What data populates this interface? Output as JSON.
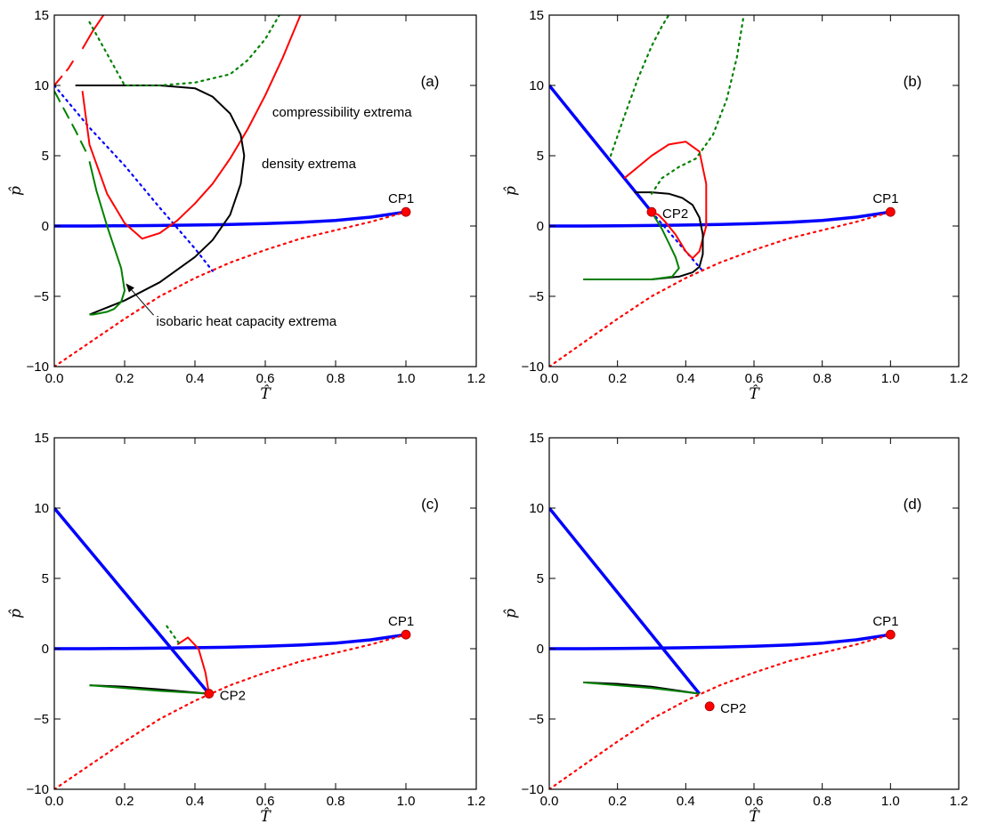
{
  "figure": {
    "xlabel": "T̂",
    "ylabel": "p̂",
    "colors": {
      "phase_boundary": "#0000ff",
      "compressibility": "#ff0000",
      "density": "#000000",
      "heat_capacity": "#008000",
      "critical_point": "#ff0000"
    }
  },
  "chart_data": [
    {
      "type": "line",
      "panel_label": "(a)",
      "xlim": [
        0,
        1.2
      ],
      "ylim": [
        -10,
        15
      ],
      "xticks": [
        0.0,
        0.2,
        0.4,
        0.6,
        0.8,
        1.0,
        1.2
      ],
      "yticks": [
        -10,
        -5,
        0,
        5,
        10,
        15
      ],
      "series": [
        {
          "name": "phase-boundary-main",
          "color": "#0000ff",
          "style": "solid",
          "x": [
            0.0,
            0.1,
            0.2,
            0.3,
            0.4,
            0.5,
            0.6,
            0.7,
            0.8,
            0.9,
            1.0
          ],
          "y": [
            0.0,
            0.0,
            0.02,
            0.04,
            0.07,
            0.11,
            0.17,
            0.26,
            0.4,
            0.63,
            1.0
          ]
        },
        {
          "name": "phase-boundary-metastable",
          "color": "#0000ff",
          "style": "dotted",
          "x": [
            0.0,
            0.1,
            0.2,
            0.3,
            0.4,
            0.45
          ],
          "y": [
            10.0,
            7.0,
            4.3,
            1.3,
            -1.6,
            -3.2
          ]
        },
        {
          "name": "compressibility-extrema-1",
          "color": "#ff0000",
          "style": "solid",
          "x": [
            0.08,
            0.1,
            0.15,
            0.2,
            0.25,
            0.3,
            0.35,
            0.4,
            0.45,
            0.5,
            0.55,
            0.6,
            0.65,
            0.7
          ],
          "y": [
            9.6,
            5.8,
            2.3,
            0.2,
            -0.9,
            -0.5,
            0.4,
            1.6,
            3.0,
            4.8,
            6.9,
            9.3,
            12.0,
            15.0
          ]
        },
        {
          "name": "compressibility-extrema-2",
          "color": "#ff0000",
          "style": "solid",
          "x": [
            0.08,
            0.11,
            0.14
          ],
          "y": [
            12.6,
            13.9,
            15.0
          ]
        },
        {
          "name": "compressibility-extrema-dashed",
          "color": "#ff0000",
          "style": "dashed",
          "x": [
            0.0,
            0.02,
            0.04,
            0.06
          ],
          "y": [
            10.0,
            10.6,
            11.2,
            12.0
          ]
        },
        {
          "name": "compressibility-spinodal",
          "color": "#ff0000",
          "style": "dotted",
          "x": [
            0.0,
            0.1,
            0.2,
            0.3,
            0.4,
            0.5,
            0.6,
            0.7,
            0.8,
            0.9,
            1.0
          ],
          "y": [
            -10.0,
            -8.3,
            -6.6,
            -5.0,
            -3.7,
            -2.6,
            -1.7,
            -0.9,
            -0.3,
            0.3,
            1.0
          ]
        },
        {
          "name": "density-extrema",
          "color": "#000000",
          "style": "solid",
          "x": [
            0.1,
            0.2,
            0.3,
            0.4,
            0.45,
            0.5,
            0.53,
            0.54,
            0.53,
            0.5,
            0.45,
            0.4,
            0.3,
            0.2,
            0.1,
            0.06
          ],
          "y": [
            -6.3,
            -5.3,
            -4.0,
            -2.2,
            -1.0,
            0.8,
            3.0,
            5.0,
            6.5,
            8.0,
            9.2,
            9.8,
            10.0,
            10.0,
            10.0,
            10.0
          ]
        },
        {
          "name": "isobaric-heat-capacity-extrema",
          "color": "#008000",
          "style": "solid",
          "x": [
            0.1,
            0.12,
            0.15,
            0.17,
            0.19,
            0.2,
            0.19,
            0.17,
            0.15,
            0.13,
            0.11,
            0.1
          ],
          "y": [
            4.6,
            2.5,
            0.0,
            -1.5,
            -3.0,
            -4.6,
            -5.4,
            -5.9,
            -6.1,
            -6.2,
            -6.3,
            -6.3
          ]
        },
        {
          "name": "heat-capacity-dashed",
          "color": "#008000",
          "style": "dashed",
          "x": [
            0.0,
            0.03,
            0.06,
            0.09
          ],
          "y": [
            9.6,
            8.2,
            6.8,
            5.3
          ]
        },
        {
          "name": "heat-capacity-dotted",
          "color": "#008000",
          "style": "dotted",
          "x": [
            0.1,
            0.2,
            0.3,
            0.4,
            0.5,
            0.55,
            0.6,
            0.64
          ],
          "y": [
            14.5,
            10.0,
            10.0,
            10.2,
            10.8,
            11.8,
            13.3,
            15.0
          ]
        }
      ],
      "critical_points": [
        {
          "label": "CP1",
          "x": 1.0,
          "y": 1.0
        }
      ],
      "annotations": [
        {
          "text": "compressibility extrema",
          "x": 0.62,
          "y": 7.8
        },
        {
          "text": "density extrema",
          "x": 0.59,
          "y": 4.1
        },
        {
          "text": "isobaric heat capacity extrema",
          "x": 0.29,
          "y": -7.1,
          "arrow_to": [
            0.2,
            -4.0
          ]
        }
      ]
    },
    {
      "type": "line",
      "panel_label": "(b)",
      "xlim": [
        0,
        1.2
      ],
      "ylim": [
        -10,
        15
      ],
      "xticks": [
        0.0,
        0.2,
        0.4,
        0.6,
        0.8,
        1.0,
        1.2
      ],
      "yticks": [
        -10,
        -5,
        0,
        5,
        10,
        15
      ],
      "series": [
        {
          "name": "phase-boundary-main",
          "color": "#0000ff",
          "style": "solid",
          "x": [
            0.0,
            0.1,
            0.2,
            0.3,
            0.4,
            0.5,
            0.6,
            0.7,
            0.8,
            0.9,
            1.0
          ],
          "y": [
            0.0,
            0.0,
            0.02,
            0.04,
            0.07,
            0.11,
            0.17,
            0.26,
            0.4,
            0.63,
            1.0
          ]
        },
        {
          "name": "phase-boundary-upper",
          "color": "#0000ff",
          "style": "solid",
          "x": [
            0.0,
            0.3
          ],
          "y": [
            10.0,
            1.0
          ]
        },
        {
          "name": "phase-boundary-metastable",
          "color": "#0000ff",
          "style": "dotted",
          "x": [
            0.3,
            0.45
          ],
          "y": [
            1.0,
            -3.2
          ]
        },
        {
          "name": "compressibility-extrema",
          "color": "#ff0000",
          "style": "solid",
          "x": [
            0.22,
            0.26,
            0.3,
            0.35,
            0.4,
            0.44,
            0.46,
            0.46,
            0.44,
            0.42,
            0.4,
            0.37,
            0.34,
            0.32,
            0.3
          ],
          "y": [
            3.4,
            4.2,
            5.0,
            5.8,
            6.0,
            5.3,
            3.0,
            0.0,
            -1.8,
            -2.3,
            -1.8,
            -0.6,
            0.3,
            0.8,
            1.0
          ]
        },
        {
          "name": "compressibility-spinodal",
          "color": "#ff0000",
          "style": "dotted",
          "x": [
            0.0,
            0.1,
            0.2,
            0.3,
            0.4,
            0.5,
            0.6,
            0.7,
            0.8,
            0.9,
            1.0
          ],
          "y": [
            -10.0,
            -8.3,
            -6.6,
            -5.0,
            -3.7,
            -2.6,
            -1.7,
            -0.9,
            -0.3,
            0.3,
            1.0
          ]
        },
        {
          "name": "density-extrema",
          "color": "#000000",
          "style": "solid",
          "x": [
            0.1,
            0.2,
            0.3,
            0.38,
            0.42,
            0.44,
            0.45,
            0.45,
            0.44,
            0.42,
            0.39,
            0.35,
            0.3,
            0.25
          ],
          "y": [
            -3.8,
            -3.8,
            -3.8,
            -3.6,
            -3.3,
            -2.9,
            -2.0,
            -0.6,
            0.6,
            1.5,
            2.0,
            2.3,
            2.4,
            2.4
          ]
        },
        {
          "name": "isobaric-heat-capacity-extrema",
          "color": "#008000",
          "style": "solid",
          "x": [
            0.1,
            0.2,
            0.3,
            0.36,
            0.38,
            0.37,
            0.35,
            0.33,
            0.31,
            0.3
          ],
          "y": [
            -3.8,
            -3.8,
            -3.8,
            -3.6,
            -3.0,
            -2.2,
            -1.2,
            -0.2,
            0.6,
            1.0
          ]
        },
        {
          "name": "heat-capacity-dotted-1",
          "color": "#008000",
          "style": "dotted",
          "x": [
            0.18,
            0.22,
            0.26,
            0.3,
            0.33,
            0.35
          ],
          "y": [
            5.0,
            7.8,
            10.5,
            12.8,
            14.2,
            15.0
          ]
        },
        {
          "name": "heat-capacity-dotted-2",
          "color": "#008000",
          "style": "dotted",
          "x": [
            0.3,
            0.33,
            0.38,
            0.43,
            0.48,
            0.52,
            0.55,
            0.57
          ],
          "y": [
            2.3,
            3.4,
            4.2,
            4.8,
            6.5,
            9.0,
            12.0,
            15.0
          ]
        }
      ],
      "critical_points": [
        {
          "label": "CP1",
          "x": 1.0,
          "y": 1.0
        },
        {
          "label": "CP2",
          "x": 0.3,
          "y": 1.0
        }
      ],
      "annotations": []
    },
    {
      "type": "line",
      "panel_label": "(c)",
      "xlim": [
        0,
        1.2
      ],
      "ylim": [
        -10,
        15
      ],
      "xticks": [
        0.0,
        0.2,
        0.4,
        0.6,
        0.8,
        1.0,
        1.2
      ],
      "yticks": [
        -10,
        -5,
        0,
        5,
        10,
        15
      ],
      "series": [
        {
          "name": "phase-boundary-main",
          "color": "#0000ff",
          "style": "solid",
          "x": [
            0.0,
            0.1,
            0.2,
            0.3,
            0.4,
            0.5,
            0.6,
            0.7,
            0.8,
            0.9,
            1.0
          ],
          "y": [
            0.0,
            0.0,
            0.02,
            0.04,
            0.07,
            0.11,
            0.17,
            0.26,
            0.4,
            0.63,
            1.0
          ]
        },
        {
          "name": "phase-boundary-upper",
          "color": "#0000ff",
          "style": "solid",
          "x": [
            0.0,
            0.44
          ],
          "y": [
            10.0,
            -3.2
          ]
        },
        {
          "name": "compressibility-extrema",
          "color": "#ff0000",
          "style": "solid",
          "x": [
            0.35,
            0.38,
            0.41,
            0.43,
            0.44
          ],
          "y": [
            0.3,
            0.8,
            0.0,
            -1.7,
            -3.2
          ]
        },
        {
          "name": "compressibility-spinodal",
          "color": "#ff0000",
          "style": "dotted",
          "x": [
            0.0,
            0.1,
            0.2,
            0.3,
            0.4,
            0.5,
            0.6,
            0.7,
            0.8,
            0.9,
            1.0
          ],
          "y": [
            -10.0,
            -8.3,
            -6.6,
            -5.0,
            -3.7,
            -2.6,
            -1.7,
            -0.9,
            -0.3,
            0.3,
            1.0
          ]
        },
        {
          "name": "density-extrema",
          "color": "#000000",
          "style": "solid",
          "x": [
            0.1,
            0.2,
            0.3,
            0.44
          ],
          "y": [
            -2.6,
            -2.7,
            -2.9,
            -3.2
          ]
        },
        {
          "name": "isobaric-heat-capacity-extrema",
          "color": "#008000",
          "style": "solid",
          "x": [
            0.1,
            0.2,
            0.3,
            0.44
          ],
          "y": [
            -2.6,
            -2.8,
            -3.0,
            -3.2
          ]
        },
        {
          "name": "heat-capacity-dotted",
          "color": "#008000",
          "style": "dotted",
          "x": [
            0.32,
            0.34,
            0.36
          ],
          "y": [
            1.6,
            0.9,
            0.2
          ]
        }
      ],
      "critical_points": [
        {
          "label": "CP1",
          "x": 1.0,
          "y": 1.0
        },
        {
          "label": "CP2",
          "x": 0.44,
          "y": -3.2
        }
      ],
      "annotations": []
    },
    {
      "type": "line",
      "panel_label": "(d)",
      "xlim": [
        0,
        1.2
      ],
      "ylim": [
        -10,
        15
      ],
      "xticks": [
        0.0,
        0.2,
        0.4,
        0.6,
        0.8,
        1.0,
        1.2
      ],
      "yticks": [
        -10,
        -5,
        0,
        5,
        10,
        15
      ],
      "series": [
        {
          "name": "phase-boundary-main",
          "color": "#0000ff",
          "style": "solid",
          "x": [
            0.0,
            0.1,
            0.2,
            0.3,
            0.4,
            0.5,
            0.6,
            0.7,
            0.8,
            0.9,
            1.0
          ],
          "y": [
            0.0,
            0.0,
            0.02,
            0.04,
            0.07,
            0.11,
            0.17,
            0.26,
            0.4,
            0.63,
            1.0
          ]
        },
        {
          "name": "phase-boundary-upper",
          "color": "#0000ff",
          "style": "solid",
          "x": [
            0.0,
            0.44
          ],
          "y": [
            10.0,
            -3.2
          ]
        },
        {
          "name": "compressibility-spinodal",
          "color": "#ff0000",
          "style": "dotted",
          "x": [
            0.0,
            0.1,
            0.2,
            0.3,
            0.4,
            0.5,
            0.6,
            0.7,
            0.8,
            0.9,
            1.0
          ],
          "y": [
            -10.0,
            -8.3,
            -6.6,
            -5.0,
            -3.7,
            -2.6,
            -1.7,
            -0.9,
            -0.3,
            0.3,
            1.0
          ]
        },
        {
          "name": "density-extrema",
          "color": "#000000",
          "style": "solid",
          "x": [
            0.1,
            0.2,
            0.3,
            0.44
          ],
          "y": [
            -2.4,
            -2.5,
            -2.7,
            -3.2
          ]
        },
        {
          "name": "isobaric-heat-capacity-extrema",
          "color": "#008000",
          "style": "solid",
          "x": [
            0.1,
            0.2,
            0.3,
            0.44
          ],
          "y": [
            -2.4,
            -2.6,
            -2.8,
            -3.2
          ]
        }
      ],
      "critical_points": [
        {
          "label": "CP1",
          "x": 1.0,
          "y": 1.0
        },
        {
          "label": "CP2",
          "x": 0.47,
          "y": -4.1
        }
      ],
      "annotations": []
    }
  ]
}
